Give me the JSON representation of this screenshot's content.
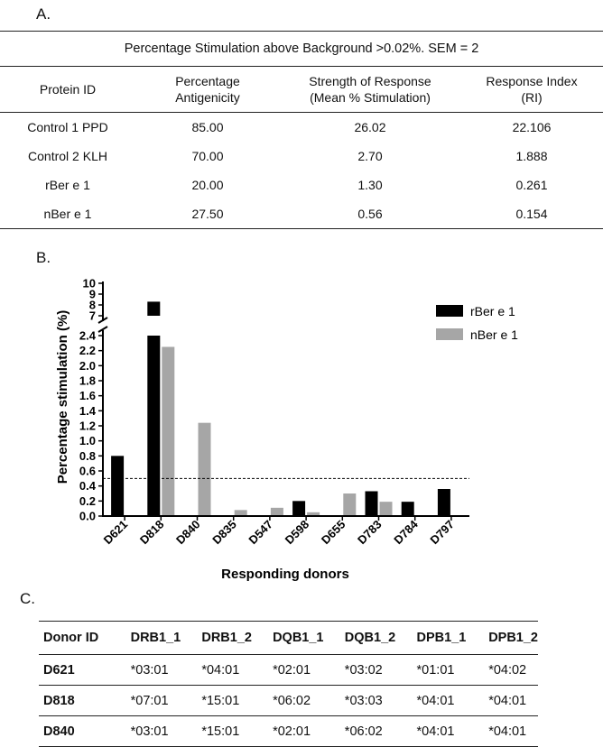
{
  "panel_a": {
    "label": "A.",
    "caption": "Percentage Stimulation above Background >0.02%. SEM = 2",
    "headers": [
      [
        "Protein ID"
      ],
      [
        "Percentage",
        "Antigenicity"
      ],
      [
        "Strength of Response",
        "(Mean % Stimulation)"
      ],
      [
        "Response Index",
        "(RI)"
      ]
    ],
    "rows": [
      [
        "Control 1 PPD",
        "85.00",
        "26.02",
        "22.106"
      ],
      [
        "Control 2 KLH",
        "70.00",
        "2.70",
        "1.888"
      ],
      [
        "rBer e 1",
        "20.00",
        "1.30",
        "0.261"
      ],
      [
        "nBer e 1",
        "27.50",
        "0.56",
        "0.154"
      ]
    ]
  },
  "panel_b": {
    "label": "B."
  },
  "chart_data": {
    "type": "bar",
    "xlabel": "Responding donors",
    "ylabel": "Percentage stimulation (%)",
    "categories": [
      "D621",
      "D818",
      "D840",
      "D835",
      "D547",
      "D598",
      "D655",
      "D783",
      "D784",
      "D797"
    ],
    "series": [
      {
        "name": "rBer e 1",
        "color": "#000000",
        "values": [
          0.8,
          8.3,
          0,
          0,
          0,
          0.2,
          0,
          0.33,
          0.19,
          0.36
        ]
      },
      {
        "name": "nBer e 1",
        "color": "#a6a6a6",
        "values": [
          0,
          2.25,
          1.24,
          0.08,
          0.11,
          0.05,
          0.3,
          0.19,
          0,
          0
        ]
      }
    ],
    "y_lower_segment": {
      "range": [
        0,
        2.4
      ],
      "ticks": [
        "0.0",
        "0.2",
        "0.4",
        "0.6",
        "0.8",
        "1.0",
        "1.2",
        "1.4",
        "1.6",
        "1.8",
        "2.0",
        "2.2",
        "2.4"
      ]
    },
    "y_upper_segment": {
      "range": [
        7,
        10
      ],
      "ticks": [
        "7",
        "8",
        "9",
        "10"
      ]
    },
    "axis_break": true,
    "reference_line": {
      "y": 0.5,
      "style": "dashed"
    },
    "legend_position": "top-right",
    "grid": false
  },
  "panel_c": {
    "label": "C.",
    "headers": [
      "Donor ID",
      "DRB1_1",
      "DRB1_2",
      "DQB1_1",
      "DQB1_2",
      "DPB1_1",
      "DPB1_2"
    ],
    "rows": [
      [
        "D621",
        "*03:01",
        "*04:01",
        "*02:01",
        "*03:02",
        "*01:01",
        "*04:02"
      ],
      [
        "D818",
        "*07:01",
        "*15:01",
        "*06:02",
        "*03:03",
        "*04:01",
        "*04:01"
      ],
      [
        "D840",
        "*03:01",
        "*15:01",
        "*02:01",
        "*06:02",
        "*04:01",
        "*04:01"
      ]
    ]
  }
}
